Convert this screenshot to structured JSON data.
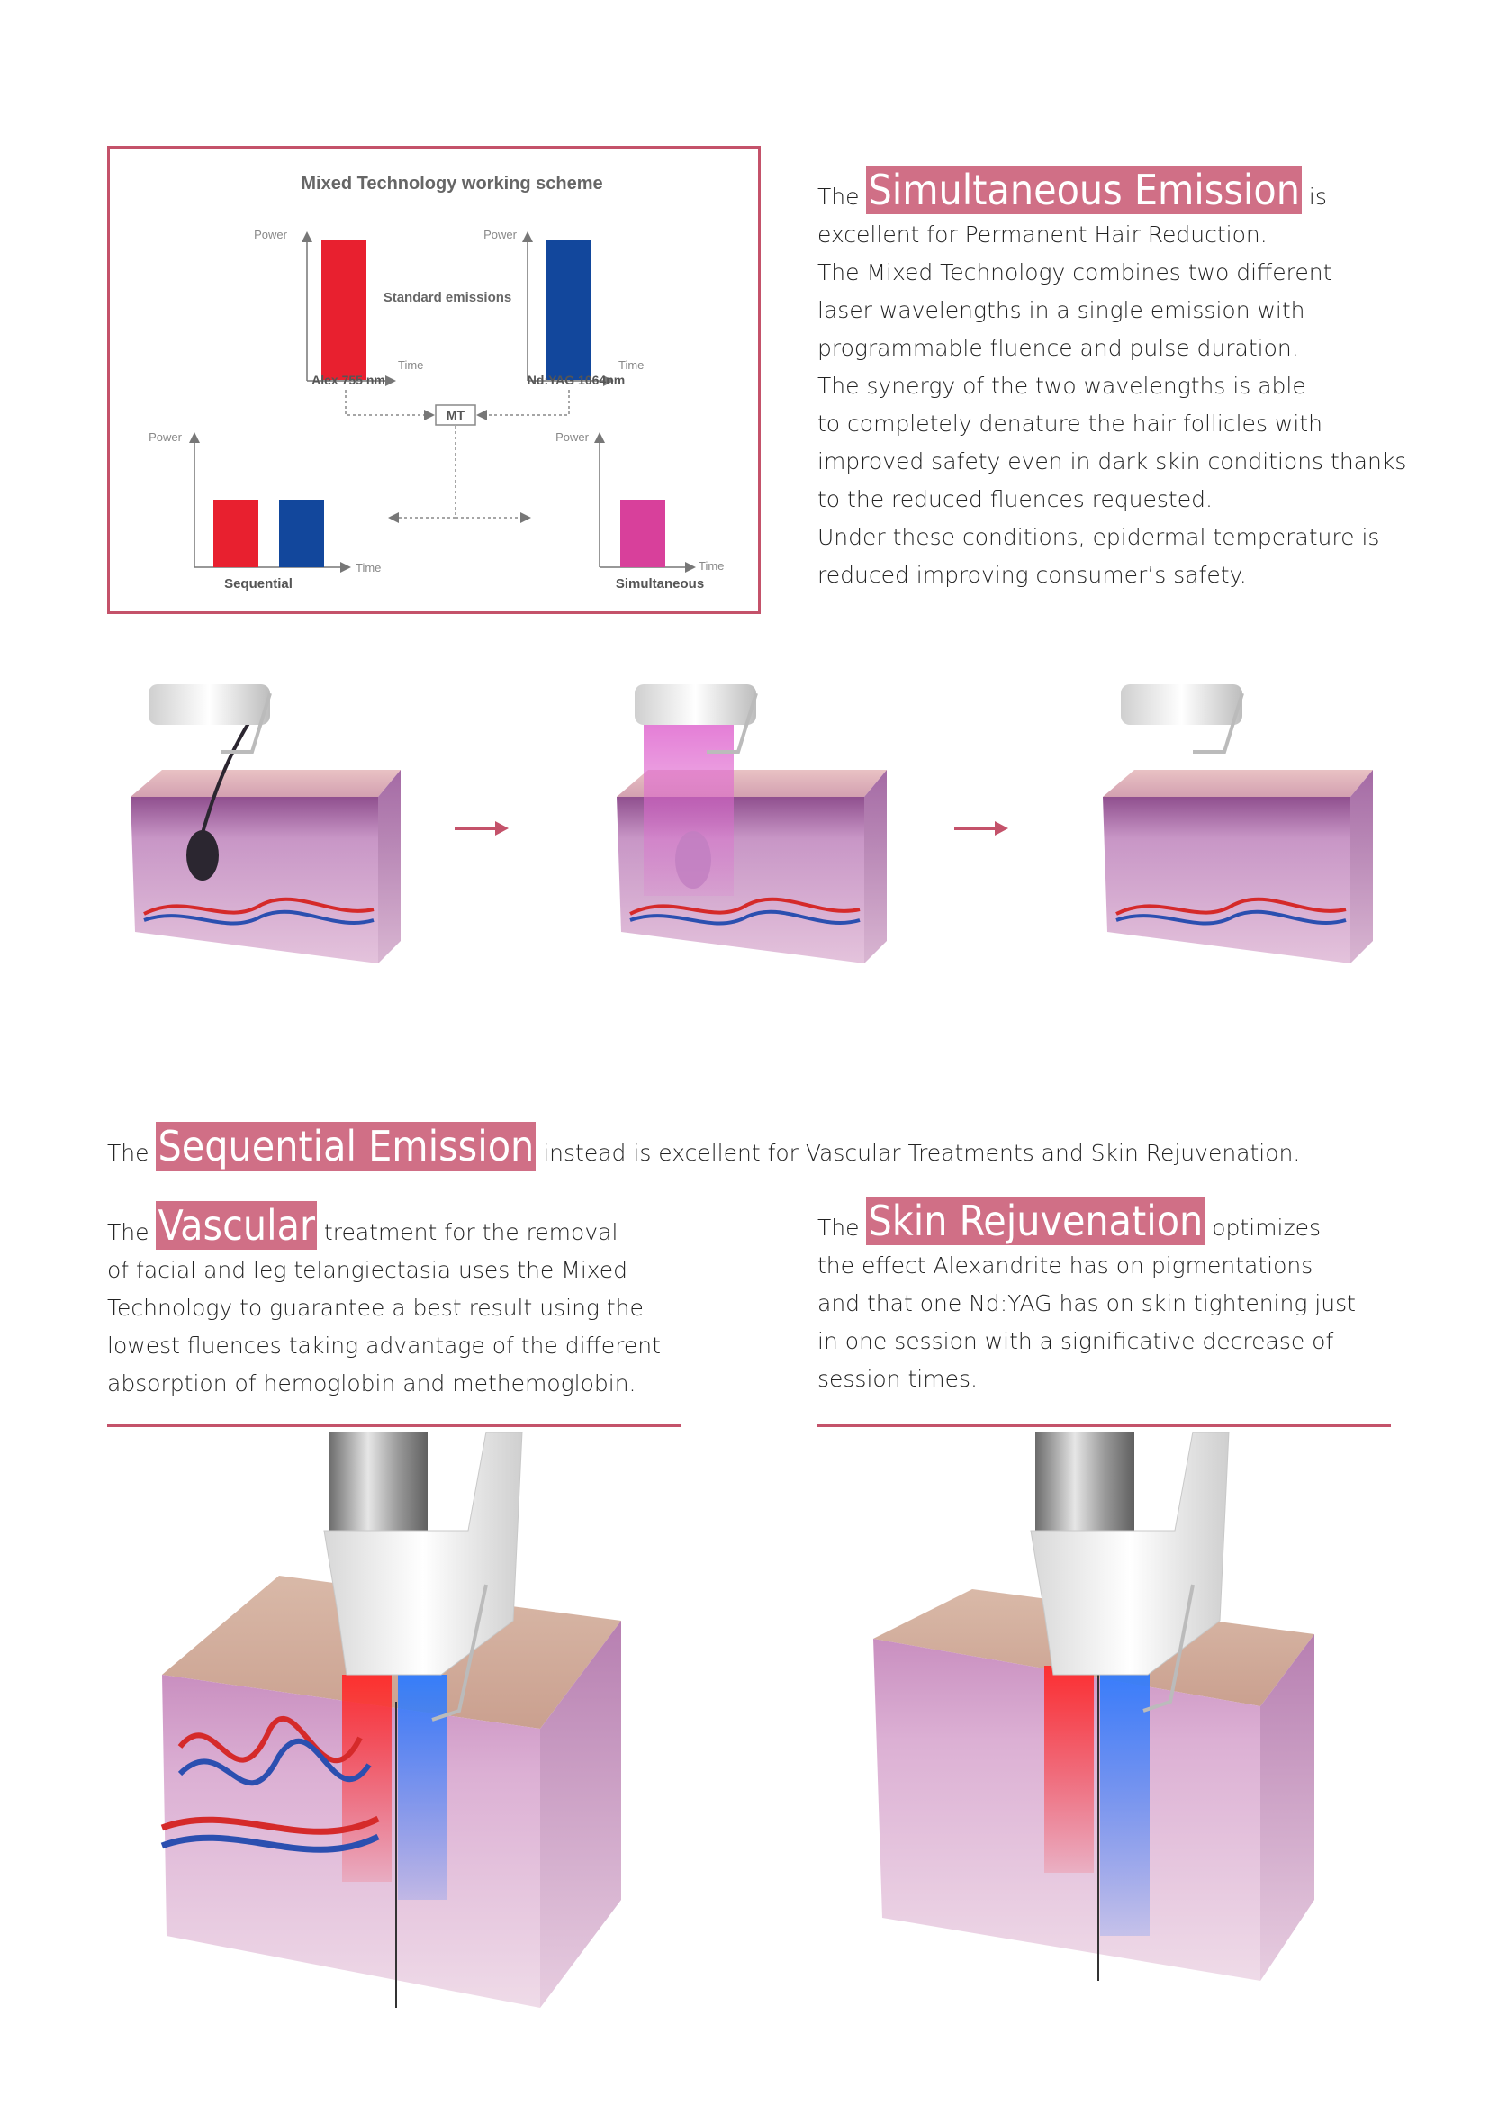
{
  "scheme": {
    "title": "Mixed Technology working scheme",
    "power_label": "Power",
    "time_label": "Time",
    "standard_emissions": "Standard emissions",
    "alex_label": "Alex 755 nm",
    "ndyag_label": "Nd:YAG 1064nm",
    "mt_label": "MT",
    "sequential_label": "Sequential",
    "simultaneous_label": "Simultaneous",
    "colors": {
      "alex": "#e8202f",
      "ndyag": "#12479c",
      "simultaneous": "#d8409b",
      "frame": "#c4526a"
    }
  },
  "simultaneous": {
    "pre": "The",
    "highlight": "Simultaneous Emission",
    "post": "is",
    "lines": [
      "excellent for Permanent Hair Reduction.",
      "The Mixed Technology combines two different",
      "laser wavelengths in a single emission with",
      "programmable fluence and pulse duration.",
      "The synergy of the two wavelengths is able",
      "to completely denature the hair follicles with",
      "improved safety even in dark skin conditions thanks",
      "to the reduced fluences requested.",
      "Under these conditions, epidermal temperature is",
      "reduced improving consumer’s safety."
    ]
  },
  "sequential": {
    "pre": "The",
    "highlight": "Sequential Emission",
    "post": "instead is excellent for Vascular Treatments and Skin Rejuvenation."
  },
  "vascular": {
    "pre": "The",
    "highlight": "Vascular",
    "post": "treatment for the removal",
    "lines": [
      "of facial and leg telangiectasia uses the Mixed",
      "Technology to guarantee a best result using the",
      "lowest fluences taking advantage of the different",
      "absorption of hemoglobin and methemoglobin."
    ]
  },
  "skin": {
    "pre": "The",
    "highlight": "Skin Rejuvenation",
    "post": "optimizes",
    "lines": [
      "the effect Alexandrite has on pigmentations",
      "and that one Nd:YAG has on skin tightening just",
      "in one session with a significative decrease of",
      "session times."
    ]
  }
}
